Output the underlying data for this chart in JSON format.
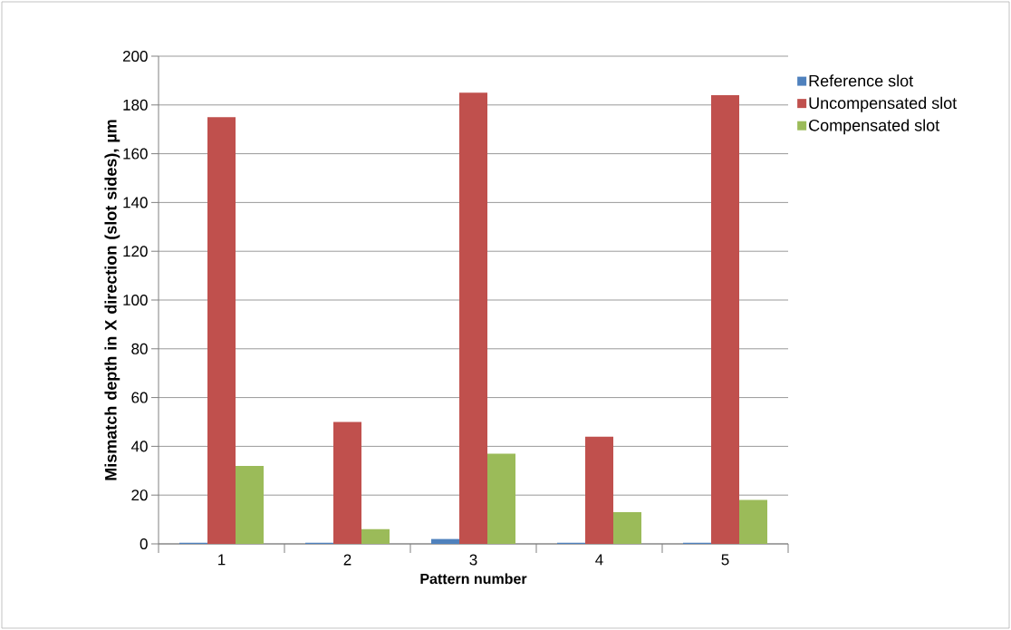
{
  "chart_data": {
    "type": "bar",
    "xlabel": "Pattern number",
    "ylabel": "Mismatch depth in X direction (slot sides), µm",
    "categories": [
      "1",
      "2",
      "3",
      "4",
      "5"
    ],
    "series": [
      {
        "name": "Reference slot",
        "color": "#4f81bd",
        "values": [
          0.5,
          0.5,
          2,
          0.5,
          0.5
        ]
      },
      {
        "name": "Uncompensated slot",
        "color": "#c0504d",
        "values": [
          175,
          50,
          185,
          44,
          184
        ]
      },
      {
        "name": "Compensated slot",
        "color": "#9bbb59",
        "values": [
          32,
          6,
          37,
          13,
          18
        ]
      }
    ],
    "ylim": [
      0,
      200
    ],
    "yticks": [
      0,
      20,
      40,
      60,
      80,
      100,
      120,
      140,
      160,
      180,
      200
    ],
    "grid": "y",
    "legend": "top right"
  }
}
